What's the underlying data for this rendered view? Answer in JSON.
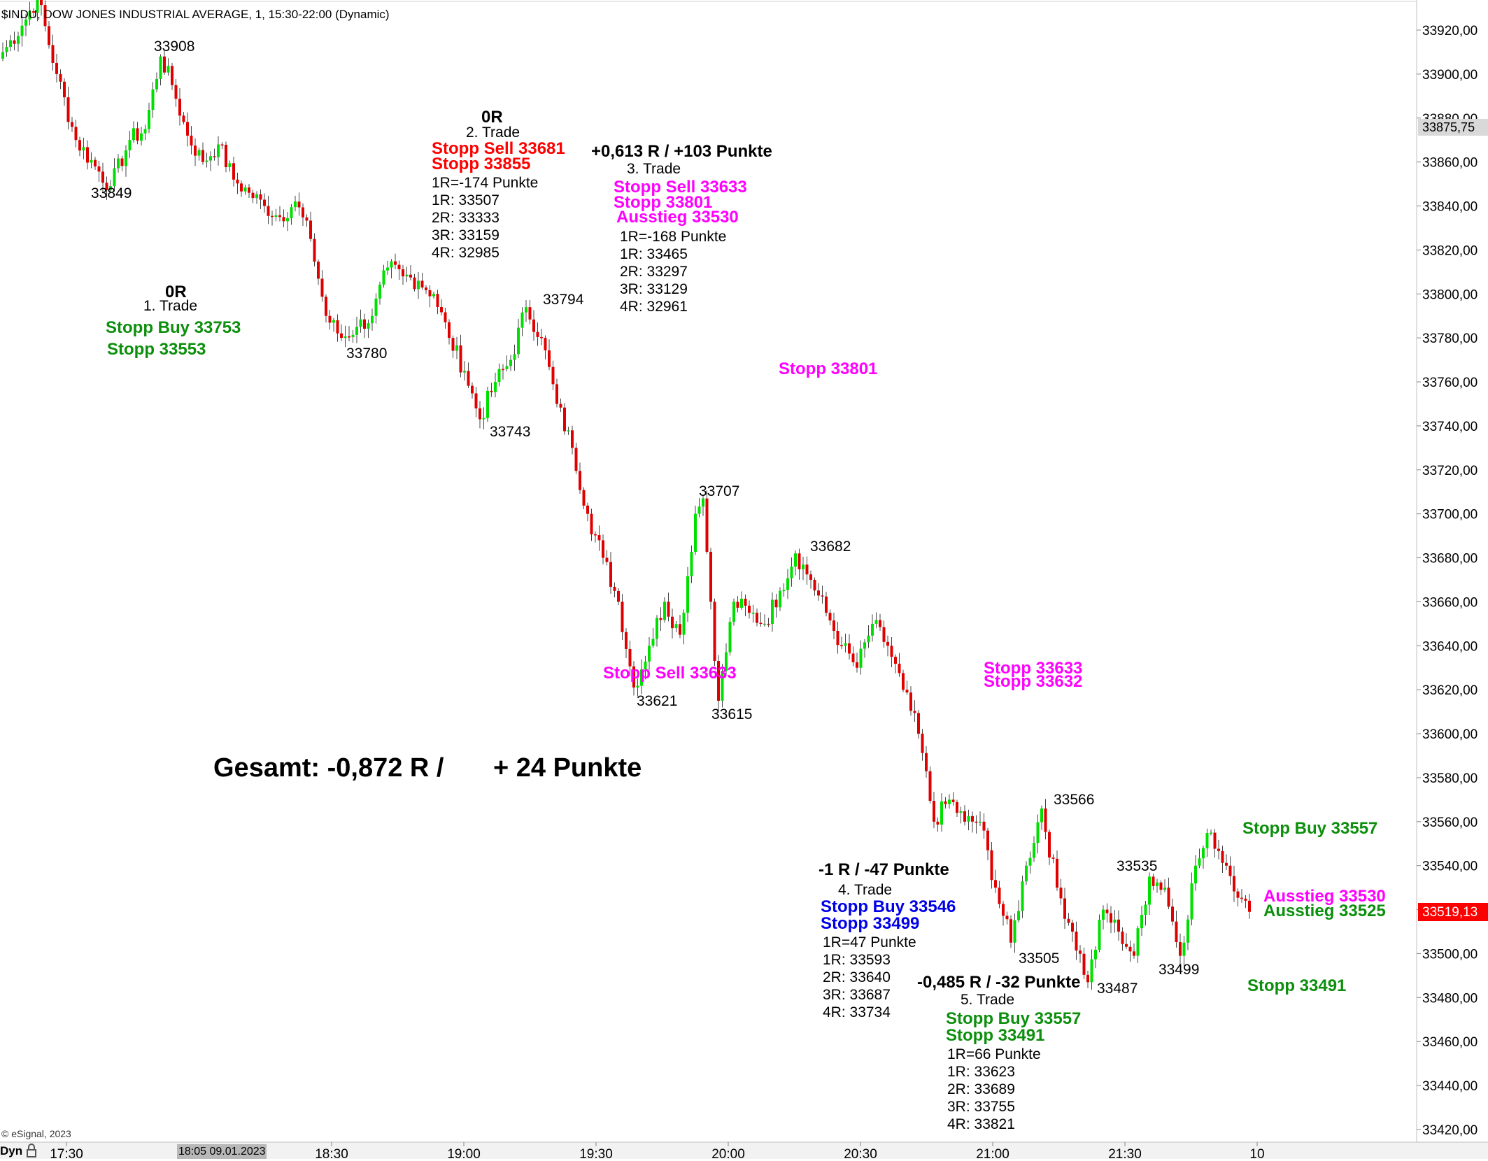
{
  "window": {
    "title": "$INDU, DOW JONES INDUSTRIAL AVERAGE, 1, 15:30-22:00 (Dynamic)",
    "copyright": "© eSignal, 2023",
    "dyn_label": "Dyn",
    "lock_icon": "lock-icon",
    "cursor_date": "18:05 09.01.2023"
  },
  "colors": {
    "up_candle": "#00e000",
    "down_candle": "#e00000",
    "wick": "#444444",
    "trade_green": "#0c8f0c",
    "trade_red": "#ff0000",
    "trade_magenta": "#ff00ff",
    "trade_blue": "#0000e6",
    "price_tag_red": "#ff0000",
    "price_tag_grey": "#d9d9d9"
  },
  "price_axis": {
    "ticks": [
      "33920,00",
      "33900,00",
      "33880,00",
      "33860,00",
      "33840,00",
      "33820,00",
      "33800,00",
      "33780,00",
      "33760,00",
      "33740,00",
      "33720,00",
      "33700,00",
      "33680,00",
      "33660,00",
      "33640,00",
      "33620,00",
      "33600,00",
      "33580,00",
      "33560,00",
      "33540,00",
      "33520,00",
      "33500,00",
      "33480,00",
      "33460,00",
      "33440,00",
      "33420,00"
    ],
    "ref_price_tag": "33875,75",
    "last_price_tag": "33519,13"
  },
  "time_axis": {
    "ticks": [
      "17:30",
      "18:30",
      "19:00",
      "19:30",
      "20:00",
      "20:30",
      "21:00",
      "21:30",
      "10"
    ]
  },
  "swing_labels": [
    "33908",
    "33849",
    "33780",
    "33794",
    "33743",
    "33707",
    "33682",
    "33621",
    "33615",
    "33566",
    "33535",
    "33505",
    "33487",
    "33499"
  ],
  "trades": {
    "t1": {
      "or": "0R",
      "name": "1. Trade",
      "entry": "Stopp Buy 33753",
      "stop": "Stopp 33553"
    },
    "t2": {
      "or": "0R",
      "name": "2. Trade",
      "entry": "Stopp Sell 33681",
      "stop": "Stopp 33855",
      "r_lines": [
        "1R=-174 Punkte",
        "1R: 33507",
        "2R: 33333",
        "3R: 33159",
        "4R: 32985"
      ]
    },
    "t3": {
      "result": "+0,613 R / +103 Punkte",
      "name": "3. Trade",
      "entry": "Stopp Sell 33633",
      "stop": "Stopp 33801",
      "exit": "Ausstieg 33530",
      "r_lines": [
        "1R=-168 Punkte",
        "1R: 33465",
        "2R: 33297",
        "3R: 33129",
        "4R: 32961"
      ],
      "stop_marker": "Stopp 33801",
      "entry_marker": "Stopp Sell 33633"
    },
    "t4": {
      "result": "-1 R / -47 Punkte",
      "name": "4. Trade",
      "entry": "Stopp Buy 33546",
      "stop": "Stopp 33499",
      "r_lines": [
        "1R=47 Punkte",
        "1R: 33593",
        "2R: 33640",
        "3R: 33687",
        "4R: 33734"
      ]
    },
    "t5": {
      "result": "-0,485 R / -32 Punkte",
      "name": "5. Trade",
      "entry": "Stopp Buy 33557",
      "stop": "Stopp 33491",
      "r_lines": [
        "1R=66 Punkte",
        "1R: 33623",
        "2R: 33689",
        "3R: 33755",
        "4R: 33821"
      ]
    },
    "right_markers": {
      "stopp1": "Stopp 33633",
      "stopp2": "Stopp 33632",
      "buy": "Stopp Buy 33557",
      "exit_mag": "Ausstieg 33530",
      "exit_green": "Ausstieg 33525",
      "stopp_low": "Stopp 33491"
    }
  },
  "summary": {
    "left": "Gesamt: -0,872 R /",
    "right": "+ 24 Punkte"
  },
  "chart_data": {
    "type": "candlestick",
    "title": "$INDU, DOW JONES INDUSTRIAL AVERAGE, 1, 15:30-22:00 (Dynamic)",
    "ylim": [
      33412,
      33935
    ],
    "waypoints": [
      [
        0,
        33910
      ],
      [
        5,
        33922
      ],
      [
        9,
        33935
      ],
      [
        14,
        33900
      ],
      [
        19,
        33870
      ],
      [
        24,
        33858
      ],
      [
        28,
        33849
      ],
      [
        33,
        33870
      ],
      [
        37,
        33875
      ],
      [
        41,
        33908
      ],
      [
        44,
        33895
      ],
      [
        48,
        33872
      ],
      [
        52,
        33860
      ],
      [
        56,
        33868
      ],
      [
        60,
        33852
      ],
      [
        64,
        33846
      ],
      [
        68,
        33840
      ],
      [
        72,
        33835
      ],
      [
        76,
        33842
      ],
      [
        80,
        33825
      ],
      [
        84,
        33790
      ],
      [
        88,
        33780
      ],
      [
        92,
        33785
      ],
      [
        96,
        33790
      ],
      [
        100,
        33812
      ],
      [
        104,
        33808
      ],
      [
        108,
        33806
      ],
      [
        112,
        33800
      ],
      [
        116,
        33780
      ],
      [
        120,
        33765
      ],
      [
        124,
        33743
      ],
      [
        128,
        33760
      ],
      [
        132,
        33770
      ],
      [
        136,
        33794
      ],
      [
        140,
        33780
      ],
      [
        144,
        33750
      ],
      [
        148,
        33730
      ],
      [
        152,
        33700
      ],
      [
        156,
        33680
      ],
      [
        160,
        33660
      ],
      [
        164,
        33621
      ],
      [
        168,
        33640
      ],
      [
        172,
        33660
      ],
      [
        176,
        33645
      ],
      [
        180,
        33700
      ],
      [
        182,
        33707
      ],
      [
        184,
        33660
      ],
      [
        186,
        33615
      ],
      [
        190,
        33660
      ],
      [
        194,
        33655
      ],
      [
        198,
        33650
      ],
      [
        202,
        33665
      ],
      [
        206,
        33682
      ],
      [
        210,
        33670
      ],
      [
        214,
        33655
      ],
      [
        218,
        33640
      ],
      [
        222,
        33630
      ],
      [
        226,
        33650
      ],
      [
        230,
        33640
      ],
      [
        234,
        33620
      ],
      [
        238,
        33600
      ],
      [
        242,
        33560
      ],
      [
        246,
        33570
      ],
      [
        250,
        33560
      ],
      [
        254,
        33560
      ],
      [
        258,
        33530
      ],
      [
        262,
        33505
      ],
      [
        266,
        33540
      ],
      [
        270,
        33566
      ],
      [
        274,
        33530
      ],
      [
        278,
        33510
      ],
      [
        282,
        33487
      ],
      [
        286,
        33520
      ],
      [
        290,
        33510
      ],
      [
        294,
        33499
      ],
      [
        298,
        33535
      ],
      [
        302,
        33530
      ],
      [
        306,
        33499
      ],
      [
        310,
        33540
      ],
      [
        314,
        33555
      ],
      [
        318,
        33540
      ],
      [
        322,
        33525
      ],
      [
        324,
        33519
      ]
    ]
  }
}
